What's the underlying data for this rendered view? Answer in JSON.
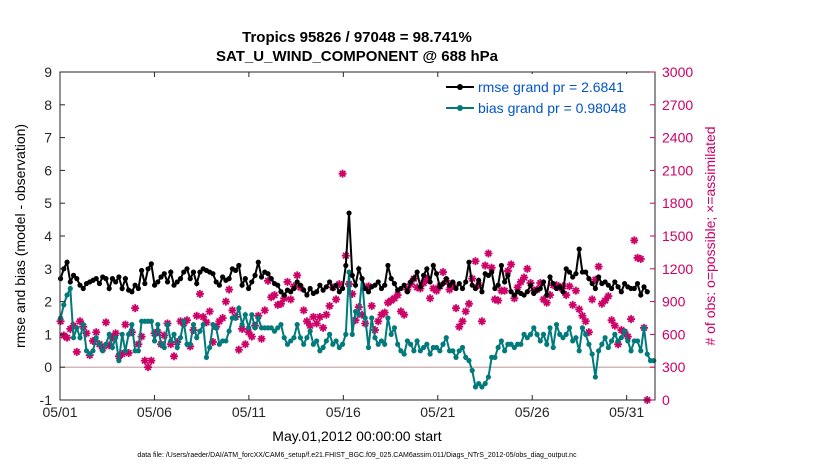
{
  "chart_data": {
    "type": "line",
    "title_line1": "Tropics 95826 / 97048 = 98.741%",
    "title_line2": "SAT_U_WIND_COMPONENT @ 688 hPa",
    "xlabel": "May.01,2012 00:00:00 start",
    "ylabel": "rmse and bias (model - observation)",
    "ylabel_right": "# of obs: o=possible; ×=assimilated",
    "xlim": [
      0,
      31.5
    ],
    "ylim": [
      -1,
      9
    ],
    "ylim_right": [
      0,
      3000
    ],
    "x_ticks": [
      0,
      5,
      10,
      15,
      20,
      25,
      30
    ],
    "x_tick_labels": [
      "05/01",
      "05/06",
      "05/11",
      "05/16",
      "05/21",
      "05/26",
      "05/31"
    ],
    "y_ticks": [
      -1,
      0,
      1,
      2,
      3,
      4,
      5,
      6,
      7,
      8,
      9
    ],
    "y_tick_labels": [
      "-1",
      "0",
      "1",
      "2",
      "3",
      "4",
      "5",
      "6",
      "7",
      "8",
      "9"
    ],
    "y_ticks_right": [
      0,
      300,
      600,
      900,
      1200,
      1500,
      1800,
      2100,
      2400,
      2700,
      3000
    ],
    "y_tick_labels_right": [
      "0",
      "300",
      "600",
      "900",
      "1200",
      "1500",
      "1800",
      "2100",
      "2400",
      "2700",
      "3000"
    ],
    "colors": {
      "rmse": "#000000",
      "bias": "#007a7a",
      "obs": "#cc0066",
      "zero_line": "#c0a0a0",
      "legend_text": "#0055cc"
    },
    "series": [
      {
        "name": "rmse grand pr = 2.6841",
        "color": "#000000",
        "values": [
          2.7,
          3.0,
          3.2,
          2.6,
          2.8,
          2.7,
          2.5,
          2.4,
          2.55,
          2.6,
          2.65,
          2.7,
          2.55,
          2.75,
          2.7,
          2.4,
          2.7,
          2.6,
          2.75,
          2.4,
          2.7,
          2.35,
          2.3,
          2.5,
          2.4,
          2.95,
          2.55,
          3.0,
          3.15,
          2.5,
          2.6,
          2.75,
          2.85,
          2.6,
          2.9,
          2.5,
          2.6,
          2.7,
          2.9,
          3.0,
          2.7,
          2.9,
          2.55,
          2.9,
          3.0,
          2.95,
          2.9,
          2.85,
          2.6,
          2.5,
          2.75,
          2.65,
          2.7,
          3.0,
          2.95,
          3.1,
          2.5,
          2.7,
          2.4,
          2.6,
          2.8,
          3.2,
          2.75,
          2.9,
          2.85,
          2.7,
          2.55,
          2.5,
          2.3,
          2.2,
          2.35,
          2.3,
          2.4,
          2.6,
          2.5,
          2.35,
          2.2,
          2.4,
          2.25,
          2.3,
          2.5,
          2.35,
          2.45,
          2.6,
          2.4,
          2.5,
          2.3,
          2.4,
          3.1,
          4.7,
          2.8,
          2.5,
          3.0,
          2.7,
          2.4,
          2.3,
          2.45,
          2.5,
          2.6,
          2.4,
          2.5,
          3.1,
          2.7,
          2.55,
          2.35,
          2.4,
          2.5,
          2.3,
          2.6,
          2.7,
          2.9,
          2.45,
          2.8,
          3.0,
          2.6,
          3.1,
          2.85,
          2.45,
          2.55,
          2.7,
          2.5,
          2.6,
          2.4,
          2.55,
          2.4,
          2.6,
          3.2,
          2.5,
          2.4,
          2.65,
          2.3,
          2.85,
          2.8,
          2.9,
          2.4,
          2.5,
          3.1,
          2.6,
          2.8,
          2.3,
          2.2,
          2.3,
          2.25,
          2.2,
          2.3,
          2.5,
          2.25,
          2.35,
          2.4,
          2.6,
          2.2,
          2.75,
          2.55,
          2.4,
          2.45,
          2.3,
          3.0,
          2.9,
          2.75,
          2.85,
          3.6,
          2.9,
          2.9,
          2.7,
          2.55,
          2.4,
          2.75,
          2.55,
          2.6,
          2.5,
          2.4,
          2.6,
          2.45,
          2.3,
          2.55,
          2.45,
          2.4,
          2.4,
          2.55,
          2.2,
          2.45,
          2.3
        ]
      },
      {
        "name": "bias grand pr = 0.98048",
        "color": "#007a7a",
        "values": [
          1.5,
          1.9,
          2.2,
          2.4,
          0.9,
          1.2,
          0.9,
          1.3,
          0.5,
          0.4,
          0.5,
          0.9,
          0.7,
          0.5,
          0.7,
          1.0,
          0.6,
          0.9,
          0.2,
          1.0,
          0.5,
          1.0,
          1.3,
          0.5,
          0.5,
          1.4,
          1.4,
          1.4,
          1.4,
          0.8,
          1.3,
          0.7,
          0.6,
          1.3,
          0.8,
          1.0,
          0.6,
          0.9,
          1.4,
          0.7,
          0.7,
          1.3,
          0.9,
          1.1,
          1.3,
          0.3,
          0.6,
          1.3,
          1.2,
          0.7,
          0.8,
          0.8,
          1.1,
          1.5,
          1.5,
          1.8,
          1.3,
          1.6,
          1.2,
          1.6,
          1.2,
          1.5,
          1.2,
          1.2,
          1.2,
          1.2,
          1.1,
          1.2,
          1.3,
          0.9,
          0.7,
          0.8,
          0.9,
          1.3,
          0.9,
          0.7,
          0.9,
          1.1,
          0.7,
          0.8,
          0.5,
          0.6,
          0.8,
          1.0,
          0.7,
          0.8,
          0.6,
          0.7,
          1.0,
          2.9,
          1.0,
          1.7,
          1.6,
          2.7,
          1.5,
          0.6,
          1.5,
          0.9,
          0.7,
          0.8,
          0.7,
          1.5,
          1.0,
          1.2,
          0.7,
          0.5,
          0.4,
          0.8,
          0.7,
          0.5,
          0.8,
          0.5,
          0.6,
          0.7,
          0.4,
          0.6,
          0.6,
          0.5,
          0.7,
          0.9,
          0.5,
          0.5,
          0.3,
          0.5,
          0.6,
          0.3,
          0.2,
          -0.1,
          -0.6,
          -0.5,
          -0.6,
          -0.5,
          -0.3,
          0.3,
          0.3,
          0.6,
          0.8,
          0.5,
          0.7,
          0.7,
          0.6,
          0.7,
          0.7,
          1.0,
          0.9,
          1.0,
          1.2,
          1.0,
          0.8,
          1.0,
          0.7,
          1.2,
          0.6,
          1.3,
          1.0,
          0.9,
          1.0,
          1.2,
          0.8,
          0.9,
          0.5,
          1.2,
          1.0,
          0.7,
          0.4,
          -0.3,
          0.5,
          0.7,
          0.9,
          0.6,
          0.8,
          1.0,
          0.8,
          0.9,
          1.1,
          0.8,
          0.5,
          0.8,
          0.8,
          0.5,
          1.2,
          0.4,
          0.2,
          0.2
        ]
      },
      {
        "name": "# obs assimilated",
        "color": "#cc0066",
        "axis": "right",
        "values": [
          720,
          590,
          570,
          650,
          680,
          440,
          720,
          670,
          610,
          410,
          540,
          620,
          510,
          470,
          710,
          500,
          570,
          610,
          400,
          420,
          690,
          430,
          620,
          840,
          510,
          580,
          360,
          300,
          360,
          610,
          620,
          510,
          590,
          700,
          510,
          400,
          530,
          720,
          700,
          730,
          490,
          640,
          770,
          970,
          760,
          710,
          810,
          530,
          670,
          720,
          750,
          900,
          1010,
          820,
          760,
          460,
          650,
          510,
          620,
          580,
          680,
          770,
          560,
          820,
          1090,
          940,
          960,
          870,
          880,
          930,
          1080,
          920,
          1040,
          1140,
          1030,
          820,
          720,
          680,
          760,
          700,
          760,
          660,
          780,
          860,
          1030,
          920,
          1060,
          2070,
          1320,
          1060,
          970,
          730,
          850,
          780,
          700,
          1040,
          860,
          640,
          720,
          780,
          800,
          890,
          910,
          930,
          960,
          810,
          780,
          1010,
          1060,
          1110,
          1030,
          1020,
          1070,
          1110,
          930,
          1020,
          1000,
          1040,
          1170,
          1090,
          1010,
          1050,
          840,
          670,
          720,
          810,
          880,
          1110,
          1270,
          1050,
          720,
          1230,
          1340,
          1210,
          920,
          910,
          1000,
          1000,
          1180,
          1240,
          930,
          1030,
          1080,
          1120,
          1200,
          1070,
          1000,
          1010,
          1070,
          920,
          890,
          960,
          1050,
          1050,
          1030,
          1040,
          960,
          1040,
          870,
          1000,
          830,
          770,
          720,
          620,
          920,
          1100,
          1220,
          880,
          910,
          950,
          730,
          680,
          510,
          640,
          620,
          580,
          740,
          1460,
          1300,
          1290,
          660,
          0
        ]
      }
    ]
  },
  "legend": {
    "rmse_label": "rmse grand pr = 2.6841",
    "bias_label": "bias grand pr = 0.98048"
  },
  "footnote": "data file: /Users/raeder/DAI/ATM_forcXX/CAM6_setup/f.e21.FHIST_BGC.f09_025.CAM6assim.011/Diags_NTrS_2012-05/obs_diag_output.nc"
}
